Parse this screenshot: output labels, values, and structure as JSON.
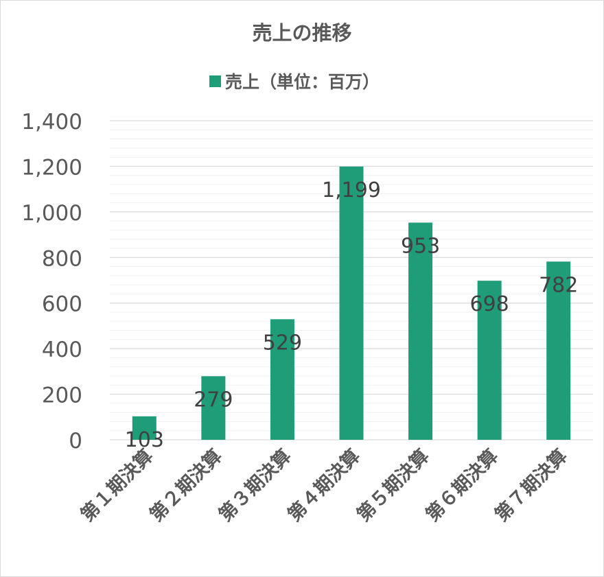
{
  "chart_data": {
    "type": "bar",
    "title": "売上の推移",
    "legend": {
      "label": "売上（単位：百万）",
      "placement": "top"
    },
    "categories": [
      "第１期決算",
      "第２期決算",
      "第３期決算",
      "第４期決算",
      "第５期決算",
      "第６期決算",
      "第７期決算"
    ],
    "series": [
      {
        "name": "売上（単位：百万）",
        "values": [
          103,
          279,
          529,
          1199,
          953,
          698,
          782
        ],
        "color": "#1f9c78"
      }
    ],
    "data_labels": [
      "103",
      "279",
      "529",
      "1,199",
      "953",
      "698",
      "782"
    ],
    "ylim": [
      0,
      1400
    ],
    "y_ticks": [
      0,
      200,
      400,
      600,
      800,
      1000,
      1200,
      1400
    ],
    "y_tick_labels": [
      "0",
      "200",
      "400",
      "600",
      "800",
      "1,000",
      "1,200",
      "1,400"
    ],
    "grid": "on",
    "xlabel": "",
    "ylabel": ""
  },
  "colors": {
    "bar": "#1f9c78",
    "text": "#595959",
    "label": "#404040",
    "major_grid": "#d9d9d9",
    "minor_grid": "#efefef"
  }
}
